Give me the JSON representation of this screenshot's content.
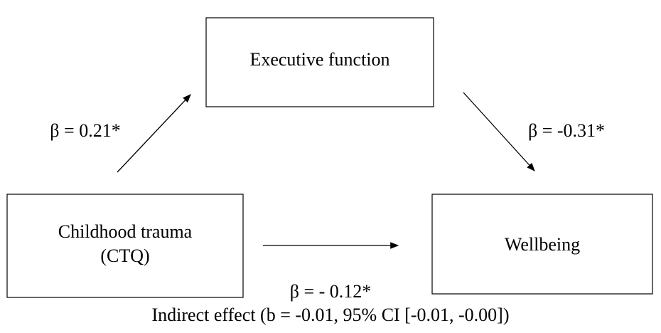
{
  "nodes": [
    {
      "label": [
        "Executive function"
      ]
    },
    {
      "label": [
        "Childhood trauma",
        "(CTQ)"
      ]
    },
    {
      "label": [
        "Wellbeing"
      ]
    }
  ],
  "edges": [
    {
      "label": "β = 0.21*"
    },
    {
      "label": "β = -0.31*"
    },
    {
      "label": "β = - 0.12*"
    }
  ],
  "note": "Indirect effect (b = -0.01, 95% CI [-0.01, -0.00])"
}
